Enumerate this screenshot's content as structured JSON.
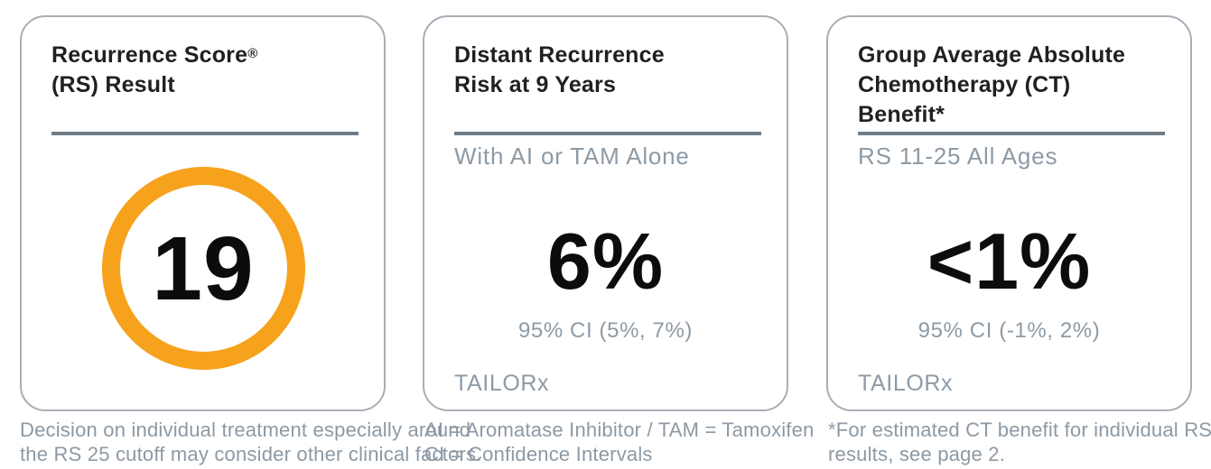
{
  "colors": {
    "accent_orange": "#f6a21c",
    "title_text": "#231f20",
    "muted_text": "#8d9aa6",
    "divider": "#6f7c88",
    "card_border": "#a7afb6",
    "value_text": "#0c0c0c",
    "background": "#ffffff"
  },
  "cards": [
    {
      "title_line1": "Recurrence Score",
      "title_reg_mark": "®",
      "title_line2": "(RS) Result",
      "score_value": "19",
      "footnote_line1": "Decision on individual treatment especially around",
      "footnote_line2": "the RS 25 cutoff may consider other clinical factors."
    },
    {
      "title_line1": "Distant Recurrence",
      "title_line2": "Risk at 9 Years",
      "subtitle": "With AI or TAM Alone",
      "value": "6%",
      "ci": "95% CI (5%, 7%)",
      "source": "TAILORx",
      "footnote_line1": "AI = Aromatase Inhibitor / TAM = Tamoxifen",
      "footnote_line2": "CI = Confidence Intervals"
    },
    {
      "title_line1": "Group Average Absolute",
      "title_line2": "Chemotherapy (CT)",
      "title_line3": "Benefit*",
      "subtitle": "RS 11-25 All Ages",
      "value": "<1%",
      "ci": "95% CI (-1%, 2%)",
      "source": "TAILORx",
      "footnote_line1": "*For estimated CT benefit for individual RS",
      "footnote_line2": "results, see page 2."
    }
  ]
}
